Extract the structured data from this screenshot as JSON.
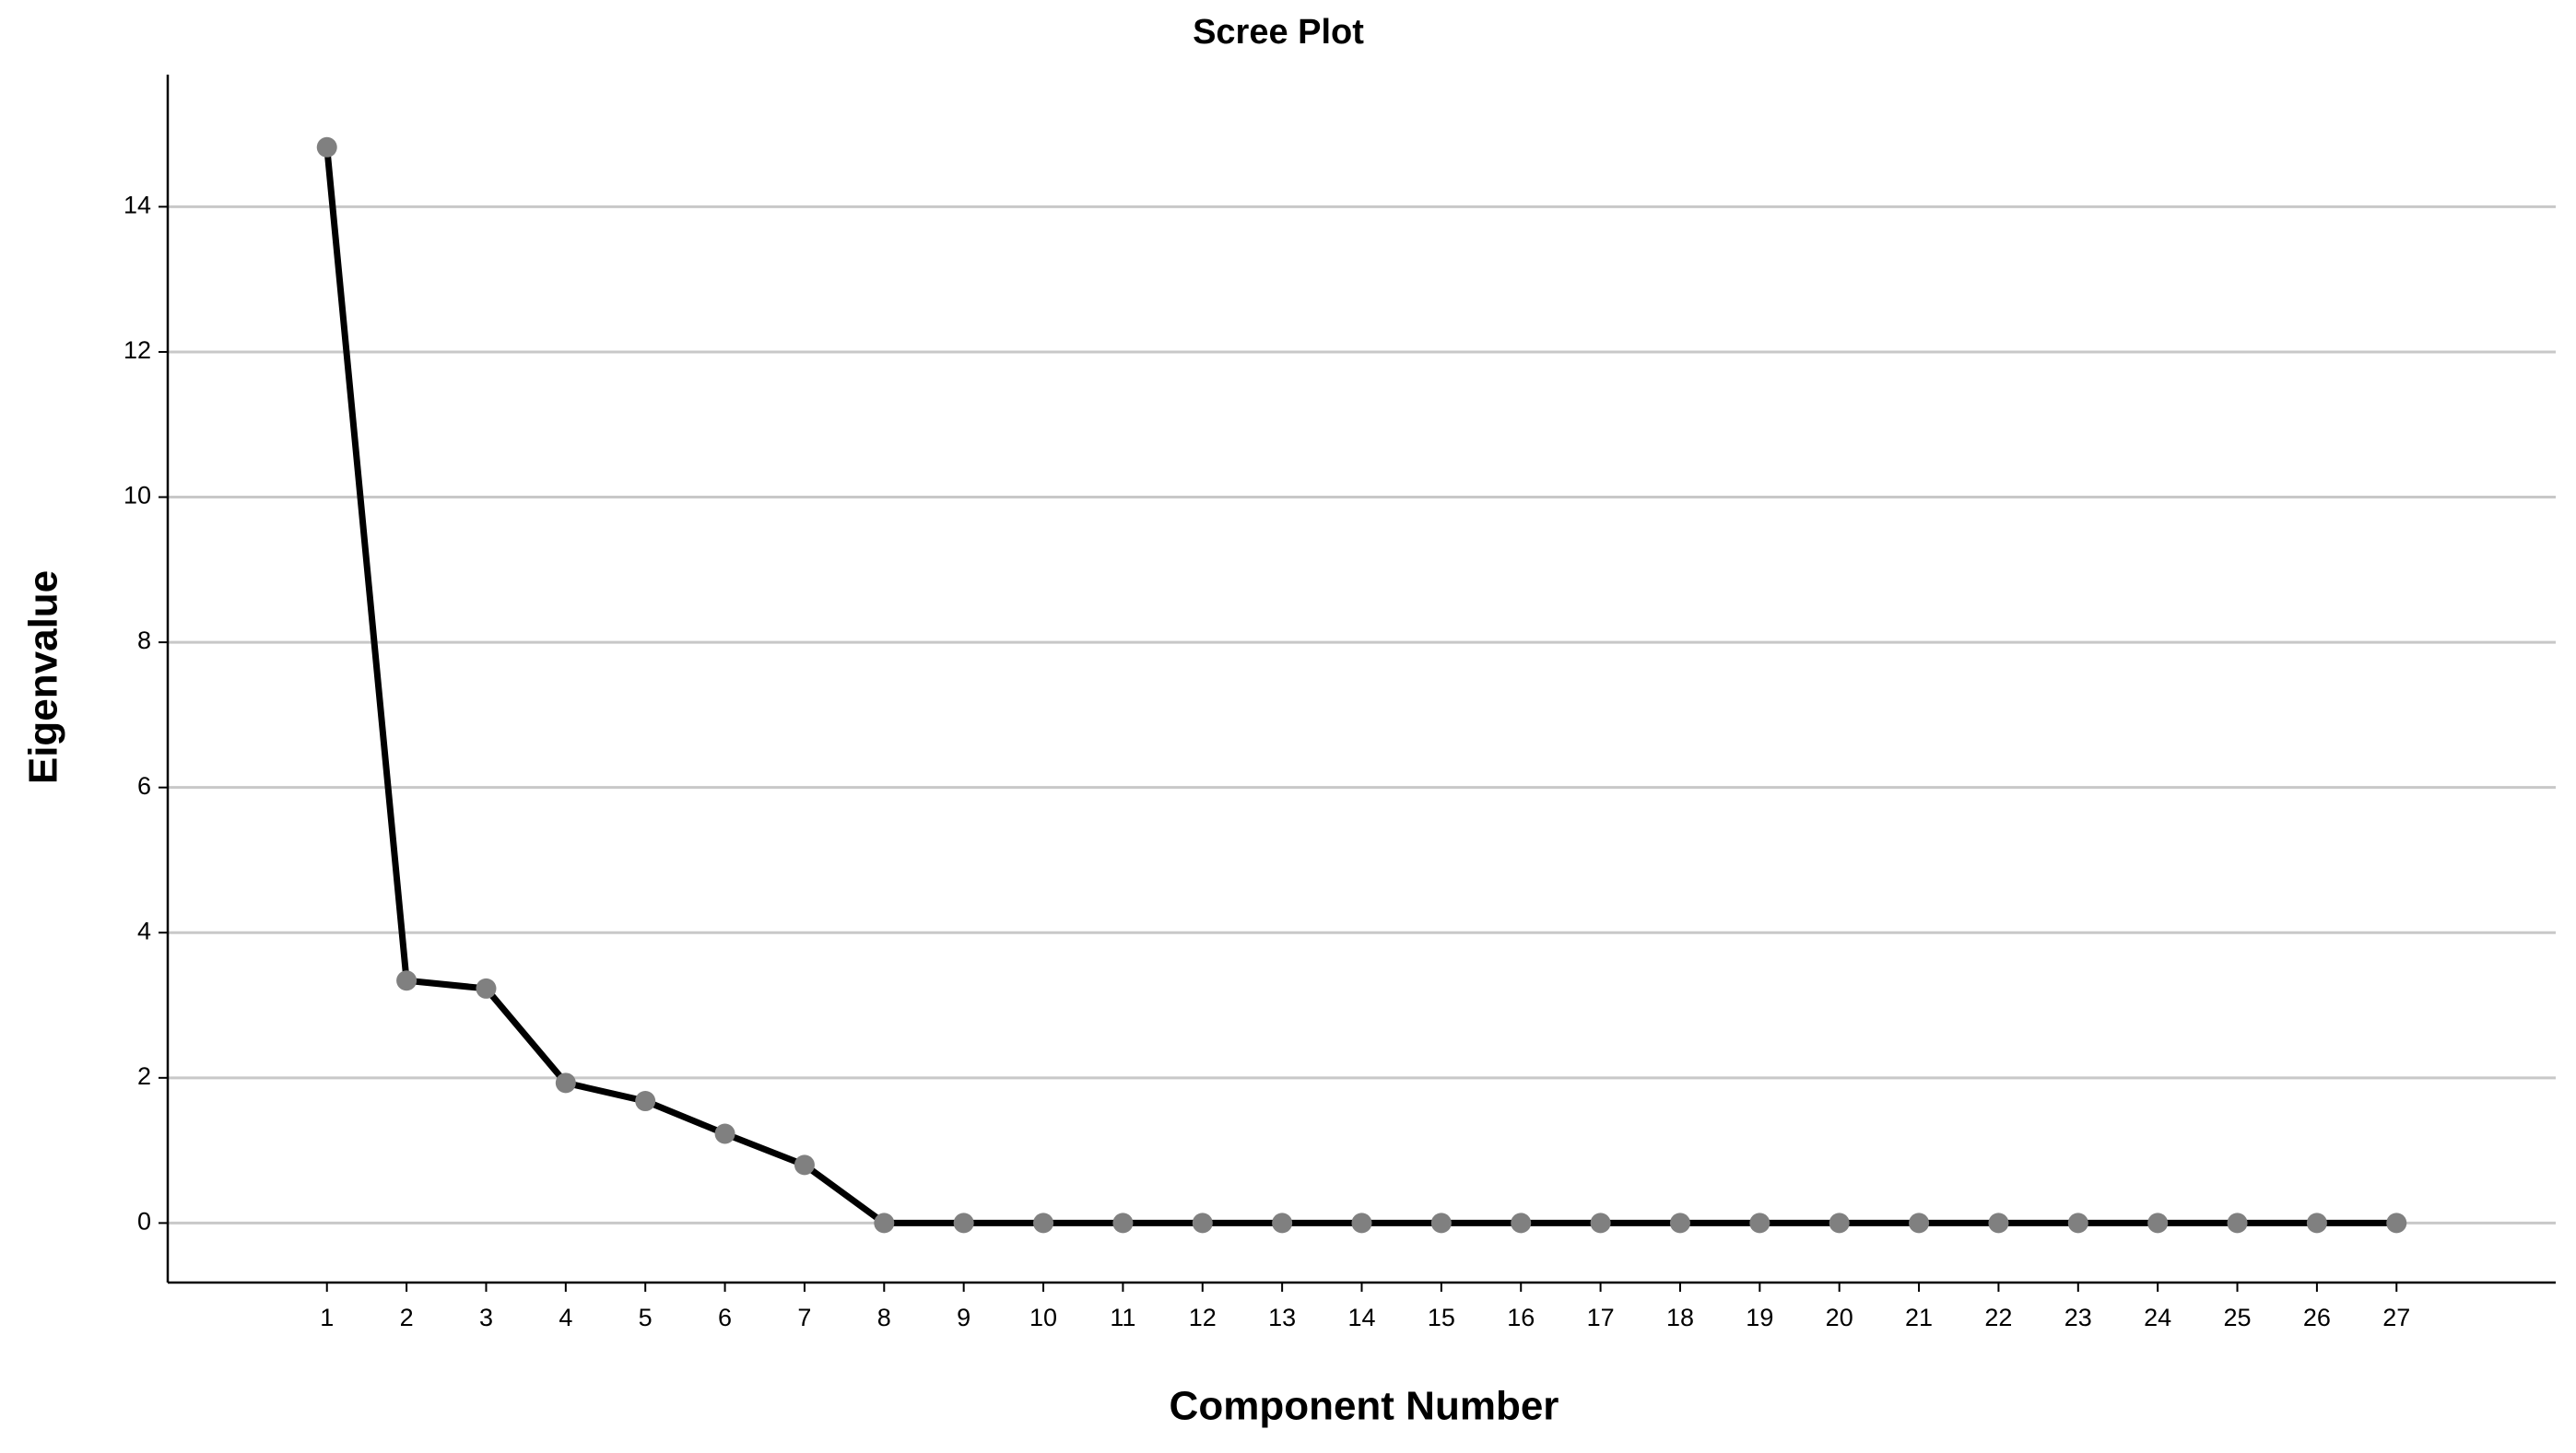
{
  "chart_data": {
    "type": "line",
    "title": "Scree Plot",
    "x_label": "Component Number",
    "y_label": "Eigenvalue",
    "x": [
      1,
      2,
      3,
      4,
      5,
      6,
      7,
      8,
      9,
      10,
      11,
      12,
      13,
      14,
      15,
      16,
      17,
      18,
      19,
      20,
      21,
      22,
      23,
      24,
      25,
      26,
      27
    ],
    "values": [
      14.82,
      3.34,
      3.23,
      1.93,
      1.68,
      1.23,
      0.8,
      0,
      0,
      0,
      0,
      0,
      0,
      0,
      0,
      0,
      0,
      0,
      0,
      0,
      0,
      0,
      0,
      0,
      0,
      0,
      0
    ],
    "color": "#000000",
    "marker_color": "#808080",
    "xlim": [
      -1,
      29
    ],
    "xticks": [
      1,
      2,
      3,
      4,
      5,
      6,
      7,
      8,
      9,
      10,
      11,
      12,
      13,
      14,
      15,
      16,
      17,
      18,
      19,
      20,
      21,
      22,
      23,
      24,
      25,
      26,
      27
    ],
    "ylim": [
      -0.82,
      15.82
    ],
    "yticks": [
      0,
      2,
      4,
      6,
      8,
      10,
      12,
      14
    ],
    "grid": true
  }
}
